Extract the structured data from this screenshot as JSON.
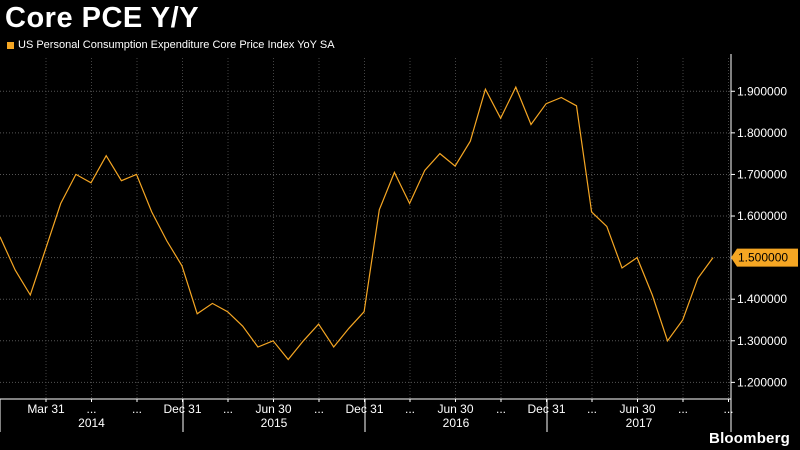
{
  "chart_data": {
    "type": "line",
    "title": "Core PCE Y/Y",
    "legend_label": "US Personal Consumption Expenditure Core Price Index YoY SA",
    "series_color": "#f5a623",
    "grid": true,
    "legend_placement": "top-left",
    "ylim": [
      1.16,
      1.98
    ],
    "yticks": [
      "1.200000",
      "1.300000",
      "1.400000",
      "1.500000",
      "1.600000",
      "1.700000",
      "1.800000",
      "1.900000"
    ],
    "current_value_label": "1.500000",
    "x_tick_labels": [
      "Mar 31",
      "...",
      "...",
      "Dec 31",
      "...",
      "Jun 30",
      "...",
      "Dec 31",
      "...",
      "Jun 30",
      "...",
      "Dec 31",
      "...",
      "Jun 30",
      "...",
      "..."
    ],
    "year_labels": [
      "2014",
      "2015",
      "2016",
      "2017"
    ],
    "series": [
      {
        "values": [
          1.55,
          1.47,
          1.41,
          1.52,
          1.63,
          1.7,
          1.68,
          1.745,
          1.685,
          1.7,
          1.61,
          1.54,
          1.48,
          1.365,
          1.39,
          1.37,
          1.335,
          1.285,
          1.3,
          1.255,
          1.3,
          1.34,
          1.285,
          1.33,
          1.37,
          1.615,
          1.705,
          1.63,
          1.71,
          1.75,
          1.72,
          1.78,
          1.905,
          1.835,
          1.91,
          1.82,
          1.87,
          1.885,
          1.865,
          1.61,
          1.575,
          1.475,
          1.5,
          1.41,
          1.3,
          1.35,
          1.45,
          1.5
        ]
      }
    ]
  },
  "brand": "Bloomberg"
}
